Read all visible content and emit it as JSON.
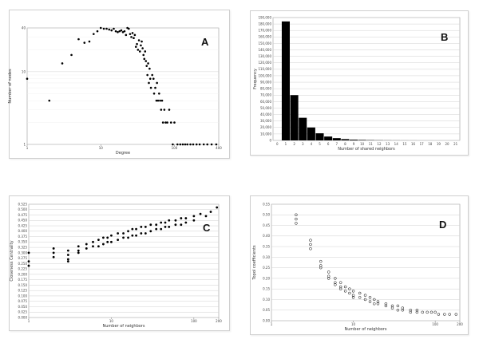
{
  "chart_data": [
    {
      "panel_label": "A",
      "type": "scatter",
      "xlabel": "Degree",
      "ylabel": "Number of nodes",
      "xscale": "log",
      "yscale": "log",
      "xlim": [
        1,
        400
      ],
      "ylim": [
        1,
        40
      ],
      "x_ticks": [
        "1",
        "10",
        "100",
        "400"
      ],
      "y_ticks": [
        "1",
        "10",
        "40"
      ],
      "grid": "horizontal",
      "marker": "filled-dot",
      "points": [
        [
          1,
          8
        ],
        [
          2,
          4
        ],
        [
          3,
          13
        ],
        [
          4,
          17
        ],
        [
          5,
          28
        ],
        [
          6,
          25
        ],
        [
          7,
          26
        ],
        [
          8,
          33
        ],
        [
          9,
          36
        ],
        [
          10,
          40
        ],
        [
          11,
          39
        ],
        [
          12,
          39
        ],
        [
          13,
          38
        ],
        [
          14,
          37
        ],
        [
          15,
          39
        ],
        [
          16,
          36
        ],
        [
          17,
          35
        ],
        [
          18,
          36
        ],
        [
          19,
          37
        ],
        [
          20,
          35
        ],
        [
          21,
          36
        ],
        [
          22,
          32
        ],
        [
          23,
          40
        ],
        [
          24,
          39
        ],
        [
          25,
          33
        ],
        [
          26,
          30
        ],
        [
          27,
          34
        ],
        [
          28,
          29
        ],
        [
          29,
          32
        ],
        [
          30,
          22
        ],
        [
          31,
          24
        ],
        [
          32,
          20
        ],
        [
          33,
          27
        ],
        [
          34,
          19
        ],
        [
          35,
          23
        ],
        [
          36,
          26
        ],
        [
          37,
          21
        ],
        [
          38,
          17
        ],
        [
          39,
          15
        ],
        [
          40,
          19
        ],
        [
          41,
          14
        ],
        [
          42,
          12
        ],
        [
          43,
          9
        ],
        [
          44,
          13
        ],
        [
          45,
          7
        ],
        [
          46,
          11
        ],
        [
          47,
          8
        ],
        [
          48,
          6
        ],
        [
          50,
          9
        ],
        [
          52,
          8
        ],
        [
          53,
          5
        ],
        [
          55,
          6
        ],
        [
          57,
          4
        ],
        [
          58,
          7
        ],
        [
          60,
          4
        ],
        [
          62,
          5
        ],
        [
          64,
          4
        ],
        [
          66,
          3
        ],
        [
          68,
          4
        ],
        [
          70,
          2
        ],
        [
          73,
          3
        ],
        [
          76,
          2
        ],
        [
          80,
          2
        ],
        [
          85,
          3
        ],
        [
          90,
          2
        ],
        [
          95,
          1
        ],
        [
          100,
          2
        ],
        [
          110,
          1
        ],
        [
          120,
          1
        ],
        [
          130,
          1
        ],
        [
          140,
          1
        ],
        [
          150,
          1
        ],
        [
          165,
          1
        ],
        [
          180,
          1
        ],
        [
          200,
          1
        ],
        [
          220,
          1
        ],
        [
          250,
          1
        ],
        [
          280,
          1
        ],
        [
          320,
          1
        ],
        [
          370,
          1
        ]
      ]
    },
    {
      "panel_label": "B",
      "type": "bar",
      "xlabel": "Number of shared neighbors",
      "ylabel": "Frequency",
      "ylim": [
        0,
        190000
      ],
      "y_ticks": [
        "0",
        "10,000",
        "20,000",
        "30,000",
        "40,000",
        "50,000",
        "60,000",
        "70,000",
        "80,000",
        "90,000",
        "100,000",
        "110,000",
        "120,000",
        "130,000",
        "140,000",
        "150,000",
        "160,000",
        "170,000",
        "180,000",
        "190,000"
      ],
      "categories": [
        "0",
        "1",
        "2",
        "3",
        "4",
        "5",
        "6",
        "7",
        "8",
        "9",
        "10",
        "11",
        "12",
        "13",
        "14",
        "15",
        "16",
        "17",
        "18",
        "19",
        "20",
        "21"
      ],
      "values": [
        0,
        184000,
        70000,
        35000,
        20000,
        11000,
        6000,
        3500,
        2000,
        1200,
        800,
        500,
        300,
        200,
        120,
        80,
        50,
        30,
        20,
        10,
        5,
        2
      ],
      "grid": "horizontal",
      "bar_color": "#000000"
    },
    {
      "panel_label": "C",
      "type": "scatter",
      "xlabel": "Number of neighbors",
      "ylabel": "Closeness Centrality",
      "xscale": "log",
      "xlim": [
        1,
        200
      ],
      "ylim": [
        0,
        0.525
      ],
      "x_ticks": [
        "1",
        "10",
        "100",
        "200"
      ],
      "y_ticks": [
        "0.000",
        "0.025",
        "0.050",
        "0.075",
        "0.100",
        "0.125",
        "0.150",
        "0.175",
        "0.200",
        "0.225",
        "0.250",
        "0.275",
        "0.300",
        "0.325",
        "0.350",
        "0.375",
        "0.400",
        "0.425",
        "0.450",
        "0.475",
        "0.500",
        "0.525"
      ],
      "grid": "horizontal",
      "marker": "filled-dot",
      "trend": "increasing",
      "points": [
        [
          1,
          0.3
        ],
        [
          1,
          0.26
        ],
        [
          1,
          0.24
        ],
        [
          2,
          0.32
        ],
        [
          2,
          0.3
        ],
        [
          2,
          0.28
        ],
        [
          3,
          0.31
        ],
        [
          3,
          0.29
        ],
        [
          3,
          0.27
        ],
        [
          3,
          0.26
        ],
        [
          4,
          0.33
        ],
        [
          4,
          0.31
        ],
        [
          4,
          0.3
        ],
        [
          5,
          0.34
        ],
        [
          5,
          0.32
        ],
        [
          6,
          0.35
        ],
        [
          6,
          0.33
        ],
        [
          7,
          0.36
        ],
        [
          7,
          0.33
        ],
        [
          8,
          0.37
        ],
        [
          8,
          0.34
        ],
        [
          9,
          0.37
        ],
        [
          9,
          0.35
        ],
        [
          10,
          0.38
        ],
        [
          10,
          0.35
        ],
        [
          12,
          0.39
        ],
        [
          12,
          0.36
        ],
        [
          14,
          0.39
        ],
        [
          14,
          0.37
        ],
        [
          16,
          0.4
        ],
        [
          16,
          0.37
        ],
        [
          18,
          0.41
        ],
        [
          18,
          0.38
        ],
        [
          20,
          0.41
        ],
        [
          20,
          0.38
        ],
        [
          23,
          0.42
        ],
        [
          23,
          0.39
        ],
        [
          26,
          0.42
        ],
        [
          26,
          0.39
        ],
        [
          30,
          0.43
        ],
        [
          30,
          0.4
        ],
        [
          35,
          0.43
        ],
        [
          35,
          0.41
        ],
        [
          40,
          0.44
        ],
        [
          40,
          0.41
        ],
        [
          45,
          0.44
        ],
        [
          45,
          0.42
        ],
        [
          50,
          0.45
        ],
        [
          50,
          0.42
        ],
        [
          60,
          0.45
        ],
        [
          60,
          0.43
        ],
        [
          70,
          0.46
        ],
        [
          70,
          0.43
        ],
        [
          80,
          0.46
        ],
        [
          80,
          0.44
        ],
        [
          100,
          0.47
        ],
        [
          100,
          0.45
        ],
        [
          120,
          0.48
        ],
        [
          140,
          0.47
        ],
        [
          160,
          0.49
        ],
        [
          190,
          0.51
        ]
      ]
    },
    {
      "panel_label": "D",
      "type": "scatter",
      "xlabel": "Number of neighbors",
      "ylabel": "Topol coefficients",
      "xscale": "log",
      "xlim": [
        1,
        200
      ],
      "ylim": [
        0,
        0.55
      ],
      "x_ticks": [
        "1",
        "10",
        "100",
        "200"
      ],
      "y_ticks": [
        "0.00",
        "0.05",
        "0.10",
        "0.15",
        "0.20",
        "0.25",
        "0.30",
        "0.35",
        "0.40",
        "0.45",
        "0.50",
        "0.55"
      ],
      "grid": "horizontal",
      "marker": "open-circle",
      "trend": "decreasing",
      "points": [
        [
          2,
          0.5
        ],
        [
          2,
          0.48
        ],
        [
          2,
          0.46
        ],
        [
          3,
          0.38
        ],
        [
          3,
          0.36
        ],
        [
          3,
          0.34
        ],
        [
          4,
          0.28
        ],
        [
          4,
          0.26
        ],
        [
          4,
          0.25
        ],
        [
          5,
          0.23
        ],
        [
          5,
          0.21
        ],
        [
          5,
          0.2
        ],
        [
          6,
          0.2
        ],
        [
          6,
          0.18
        ],
        [
          6,
          0.17
        ],
        [
          7,
          0.18
        ],
        [
          7,
          0.16
        ],
        [
          7,
          0.15
        ],
        [
          8,
          0.16
        ],
        [
          8,
          0.14
        ],
        [
          9,
          0.15
        ],
        [
          9,
          0.13
        ],
        [
          10,
          0.14
        ],
        [
          10,
          0.12
        ],
        [
          10,
          0.11
        ],
        [
          12,
          0.13
        ],
        [
          12,
          0.11
        ],
        [
          14,
          0.12
        ],
        [
          14,
          0.1
        ],
        [
          16,
          0.11
        ],
        [
          16,
          0.09
        ],
        [
          18,
          0.1
        ],
        [
          18,
          0.08
        ],
        [
          20,
          0.09
        ],
        [
          20,
          0.08
        ],
        [
          25,
          0.08
        ],
        [
          25,
          0.07
        ],
        [
          30,
          0.07
        ],
        [
          30,
          0.06
        ],
        [
          35,
          0.07
        ],
        [
          35,
          0.05
        ],
        [
          40,
          0.06
        ],
        [
          40,
          0.05
        ],
        [
          50,
          0.05
        ],
        [
          50,
          0.04
        ],
        [
          60,
          0.05
        ],
        [
          60,
          0.04
        ],
        [
          70,
          0.04
        ],
        [
          80,
          0.04
        ],
        [
          90,
          0.04
        ],
        [
          100,
          0.04
        ],
        [
          110,
          0.03
        ],
        [
          130,
          0.03
        ],
        [
          150,
          0.03
        ],
        [
          180,
          0.03
        ]
      ]
    }
  ]
}
